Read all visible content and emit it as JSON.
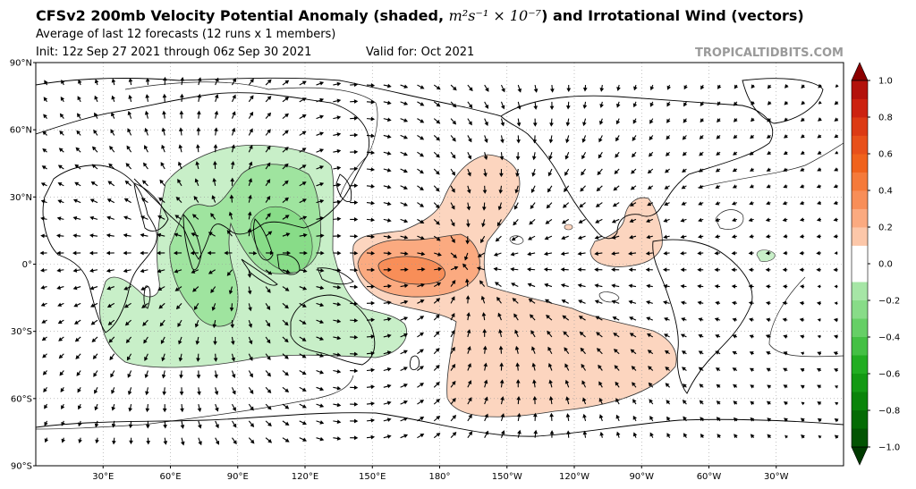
{
  "header": {
    "title_main": "CFSv2 200mb Velocity Potential Anomaly (shaded, ",
    "title_units": "m²s⁻¹ × 10⁻⁷",
    "title_tail": ") and Irrotational Wind (vectors)",
    "subtitle": "Average of last 12 forecasts (12 runs x 1 members)",
    "init": "Init: 12z Sep 27 2021 through 06z Sep 30 2021",
    "valid": "Valid for: Oct 2021",
    "credit": "TROPICALTIDBITS.COM"
  },
  "map": {
    "projection": "equirectangular",
    "lon_range": [
      0,
      360
    ],
    "lat_range": [
      -90,
      90
    ],
    "central_longitude": 180,
    "lat_ticks": [
      "90°N",
      "60°N",
      "30°N",
      "0°",
      "30°S",
      "60°S",
      "90°S"
    ],
    "lon_ticks": [
      "30°E",
      "60°E",
      "90°E",
      "120°E",
      "150°E",
      "180°",
      "150°W",
      "120°W",
      "90°W",
      "60°W",
      "30°W"
    ],
    "gridlines": "dotted",
    "coastlines": true,
    "borders": true,
    "anomaly_features": [
      {
        "name": "Indian Ocean / Maritime Continent divergence",
        "sign": "negative",
        "peak": -0.3
      },
      {
        "name": "Central Pacific convergence",
        "sign": "positive",
        "peak": 0.5
      },
      {
        "name": "Southeast Pacific",
        "sign": "positive",
        "peak": 0.2
      },
      {
        "name": "Caribbean / Gulf of Mexico",
        "sign": "positive",
        "peak": 0.2
      },
      {
        "name": "Equatorial Atlantic",
        "sign": "negative",
        "peak": -0.2
      }
    ]
  },
  "colorbar": {
    "ticks": [
      "1.0",
      "0.8",
      "0.6",
      "0.4",
      "0.2",
      "0.0",
      "−0.2",
      "−0.4",
      "−0.6",
      "−0.8",
      "−1.0"
    ],
    "range": [
      -1.0,
      1.0
    ],
    "colors_positive": [
      "#fde0d0",
      "#fcc7a9",
      "#fbaa80",
      "#f88e58",
      "#f57a3a",
      "#f0621c",
      "#e8501a",
      "#dc3a14",
      "#cc2210",
      "#b3120c",
      "#8b0000"
    ],
    "colors_negative": [
      "#c8efc8",
      "#a6e6a6",
      "#88dc88",
      "#66cf66",
      "#44c044",
      "#22ad22",
      "#149914",
      "#0a840a",
      "#056b05",
      "#035403",
      "#003a00"
    ]
  }
}
